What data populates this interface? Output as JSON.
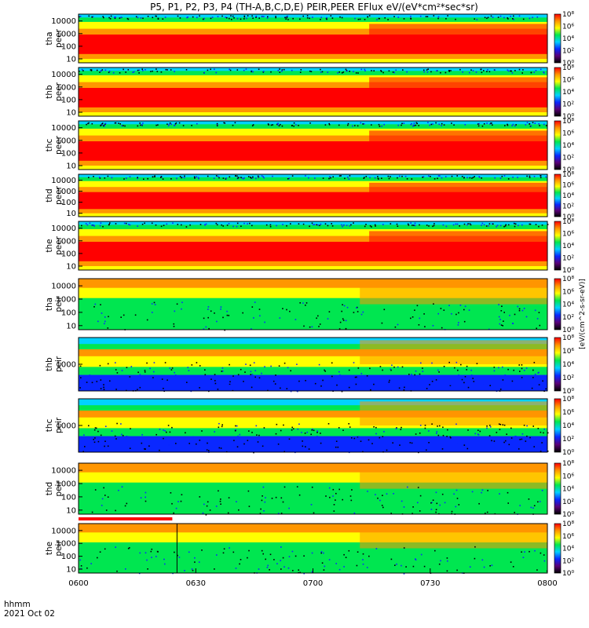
{
  "title": "P5, P1, P2, P3, P4 (TH-A,B,C,D,E) PEIR,PEER EFlux eV/(eV*cm²*sec*sr)",
  "chart_data": {
    "type": "heatmap",
    "x_label": "hhmm",
    "date": "2021 Oct 02",
    "x_ticks": [
      "0600",
      "0630",
      "0700",
      "0730",
      "0800"
    ],
    "x_range": [
      "06:00",
      "08:00"
    ],
    "colorbar_label": "[eV/(cm^2-s-sr-eV)]",
    "colorbar_ticks": [
      "10⁰",
      "10²",
      "10⁴",
      "10⁶",
      "10⁸"
    ],
    "colors": {
      "black": "#000000",
      "purple": "#5a0078",
      "blue": "#0a28ff",
      "cyan": "#00d2ff",
      "green": "#00e650",
      "yellow": "#ffff00",
      "orange": "#ff9600",
      "red": "#ff0000",
      "bar": "#ff0000"
    },
    "panels": [
      {
        "label_line1": "tha",
        "label_line2": "peer",
        "y_ticks": [
          "10000",
          "1000",
          "100",
          "10"
        ]
      },
      {
        "label_line1": "thb",
        "label_line2": "peer",
        "y_ticks": [
          "10000",
          "1000",
          "100",
          "10"
        ]
      },
      {
        "label_line1": "thc",
        "label_line2": "peer",
        "y_ticks": [
          "10000",
          "1000",
          "100",
          "10"
        ]
      },
      {
        "label_line1": "thd",
        "label_line2": "peer",
        "y_ticks": [
          "10000",
          "1000",
          "100",
          "10"
        ]
      },
      {
        "label_line1": "the",
        "label_line2": "peer",
        "y_ticks": [
          "10000",
          "1000",
          "100",
          "10"
        ]
      },
      {
        "label_line1": "tha",
        "label_line2": "peir",
        "y_ticks": [
          "10000",
          "1000",
          "100",
          "10"
        ]
      },
      {
        "label_line1": "thb",
        "label_line2": "peir",
        "y_ticks": [
          "1000"
        ]
      },
      {
        "label_line1": "thc",
        "label_line2": "peir",
        "y_ticks": [
          "1000"
        ]
      },
      {
        "label_line1": "thd",
        "label_line2": "peir",
        "y_ticks": [
          "10000",
          "1000",
          "100",
          "10"
        ]
      },
      {
        "label_line1": "the",
        "label_line2": "peir",
        "y_ticks": [
          "10000",
          "1000",
          "100",
          "10"
        ]
      }
    ]
  }
}
